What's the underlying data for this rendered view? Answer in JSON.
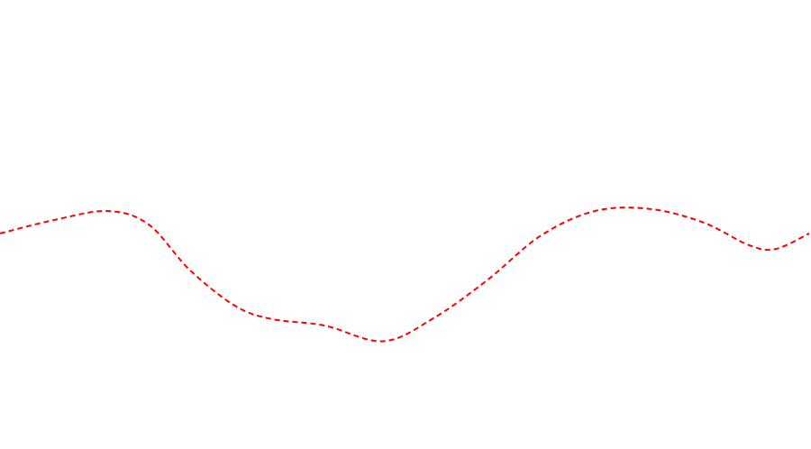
{
  "chart_data": {
    "type": "line",
    "title": "",
    "xlabel": "",
    "ylabel": "",
    "axes_visible": false,
    "grid": false,
    "legend": "none",
    "line_style": "dashed",
    "series": [
      {
        "color": "#ff0000",
        "points": [
          [
            0,
            -0.4
          ],
          [
            60,
            0.2
          ],
          [
            120,
            0.6
          ],
          [
            165,
            0.0
          ],
          [
            210,
            -2.0
          ],
          [
            260,
            -3.6
          ],
          [
            300,
            -4.2
          ],
          [
            360,
            -4.5
          ],
          [
            425,
            -5.2
          ],
          [
            480,
            -4.2
          ],
          [
            540,
            -2.5
          ],
          [
            600,
            -0.5
          ],
          [
            660,
            0.6
          ],
          [
            720,
            0.7
          ],
          [
            780,
            0.1
          ],
          [
            830,
            -0.9
          ],
          [
            860,
            -1.1
          ],
          [
            898,
            -0.4
          ]
        ]
      }
    ],
    "xlim": [
      0,
      898
    ],
    "ylim": [
      -10,
      10
    ]
  }
}
